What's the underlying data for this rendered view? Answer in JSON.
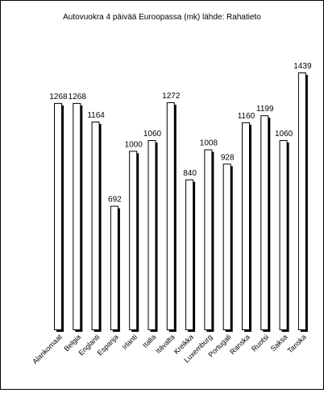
{
  "chart_data": {
    "type": "bar",
    "title": "Autovuokra 4 päivää Euroopassa (mk) lähde: Rahatieto",
    "categories": [
      "Alankomaat",
      "Belgia",
      "Englanti",
      "Espanja",
      "Irlanti",
      "Italia",
      "Itävalta",
      "Kreikka",
      "Luxemburg",
      "Portugali",
      "Ranska",
      "Ruotsi",
      "Saksa",
      "Tanska"
    ],
    "values": [
      1268,
      1268,
      1164,
      692,
      1000,
      1060,
      1272,
      840,
      1008,
      928,
      1160,
      1199,
      1060,
      1439
    ],
    "ylim": [
      0,
      1439
    ],
    "grid": false,
    "legend": false,
    "colors": {
      "bar_fill": "#ffffff",
      "bar_shadow": "#000000",
      "text": "#000000"
    }
  }
}
